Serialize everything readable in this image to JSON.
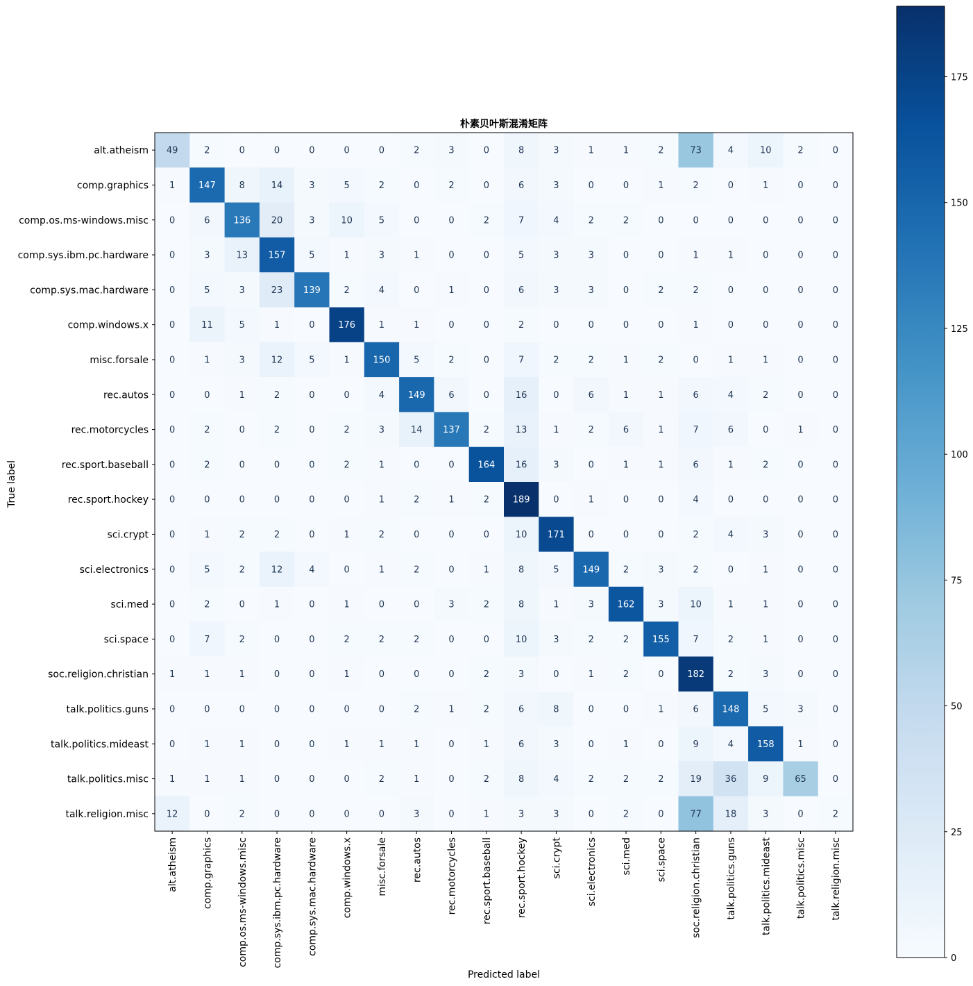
{
  "chart_data": {
    "type": "heatmap",
    "title": "朴素贝叶斯混淆矩阵",
    "xlabel": "Predicted label",
    "ylabel": "True label",
    "labels": [
      "alt.atheism",
      "comp.graphics",
      "comp.os.ms-windows.misc",
      "comp.sys.ibm.pc.hardware",
      "comp.sys.mac.hardware",
      "comp.windows.x",
      "misc.forsale",
      "rec.autos",
      "rec.motorcycles",
      "rec.sport.baseball",
      "rec.sport.hockey",
      "sci.crypt",
      "sci.electronics",
      "sci.med",
      "sci.space",
      "soc.religion.christian",
      "talk.politics.guns",
      "talk.politics.mideast",
      "talk.politics.misc",
      "talk.religion.misc"
    ],
    "matrix": [
      [
        49,
        2,
        0,
        0,
        0,
        0,
        0,
        2,
        3,
        0,
        8,
        3,
        1,
        1,
        2,
        73,
        4,
        10,
        2,
        0
      ],
      [
        1,
        147,
        8,
        14,
        3,
        5,
        2,
        0,
        2,
        0,
        6,
        3,
        0,
        0,
        1,
        2,
        0,
        1,
        0,
        0
      ],
      [
        0,
        6,
        136,
        20,
        3,
        10,
        5,
        0,
        0,
        2,
        7,
        4,
        2,
        2,
        0,
        0,
        0,
        0,
        0,
        0
      ],
      [
        0,
        3,
        13,
        157,
        5,
        1,
        3,
        1,
        0,
        0,
        5,
        3,
        3,
        0,
        0,
        1,
        1,
        0,
        0,
        0
      ],
      [
        0,
        5,
        3,
        23,
        139,
        2,
        4,
        0,
        1,
        0,
        6,
        3,
        3,
        0,
        2,
        2,
        0,
        0,
        0,
        0
      ],
      [
        0,
        11,
        5,
        1,
        0,
        176,
        1,
        1,
        0,
        0,
        2,
        0,
        0,
        0,
        0,
        1,
        0,
        0,
        0,
        0
      ],
      [
        0,
        1,
        3,
        12,
        5,
        1,
        150,
        5,
        2,
        0,
        7,
        2,
        2,
        1,
        2,
        0,
        1,
        1,
        0,
        0
      ],
      [
        0,
        0,
        1,
        2,
        0,
        0,
        4,
        149,
        6,
        0,
        16,
        0,
        6,
        1,
        1,
        6,
        4,
        2,
        0,
        0
      ],
      [
        0,
        2,
        0,
        2,
        0,
        2,
        3,
        14,
        137,
        2,
        13,
        1,
        2,
        6,
        1,
        7,
        6,
        0,
        1,
        0
      ],
      [
        0,
        2,
        0,
        0,
        0,
        2,
        1,
        0,
        0,
        164,
        16,
        3,
        0,
        1,
        1,
        6,
        1,
        2,
        0,
        0
      ],
      [
        0,
        0,
        0,
        0,
        0,
        0,
        1,
        2,
        1,
        2,
        189,
        0,
        1,
        0,
        0,
        4,
        0,
        0,
        0,
        0
      ],
      [
        0,
        1,
        2,
        2,
        0,
        1,
        2,
        0,
        0,
        0,
        10,
        171,
        0,
        0,
        0,
        2,
        4,
        3,
        0,
        0
      ],
      [
        0,
        5,
        2,
        12,
        4,
        0,
        1,
        2,
        0,
        1,
        8,
        5,
        149,
        2,
        3,
        2,
        0,
        1,
        0,
        0
      ],
      [
        0,
        2,
        0,
        1,
        0,
        1,
        0,
        0,
        3,
        2,
        8,
        1,
        3,
        162,
        3,
        10,
        1,
        1,
        0,
        0
      ],
      [
        0,
        7,
        2,
        0,
        0,
        2,
        2,
        2,
        0,
        0,
        10,
        3,
        2,
        2,
        155,
        7,
        2,
        1,
        0,
        0
      ],
      [
        1,
        1,
        1,
        0,
        0,
        1,
        0,
        0,
        0,
        2,
        3,
        0,
        1,
        2,
        0,
        182,
        2,
        3,
        0,
        0
      ],
      [
        0,
        0,
        0,
        0,
        0,
        0,
        0,
        2,
        1,
        2,
        6,
        8,
        0,
        0,
        1,
        6,
        148,
        5,
        3,
        0
      ],
      [
        0,
        1,
        1,
        0,
        0,
        1,
        1,
        1,
        0,
        1,
        6,
        3,
        0,
        1,
        0,
        9,
        4,
        158,
        1,
        0
      ],
      [
        1,
        1,
        1,
        0,
        0,
        0,
        2,
        1,
        0,
        2,
        8,
        4,
        2,
        2,
        2,
        19,
        36,
        9,
        65,
        0
      ],
      [
        12,
        0,
        2,
        0,
        0,
        0,
        0,
        3,
        0,
        1,
        3,
        3,
        0,
        2,
        0,
        77,
        18,
        3,
        0,
        2
      ]
    ],
    "colormap": "Blues",
    "vmin": 0,
    "vmax": 189,
    "colorbar_ticks": [
      0,
      25,
      50,
      75,
      100,
      125,
      150,
      175
    ],
    "colorbar_tick_labels": [
      "0",
      "25",
      "50",
      "75",
      "100",
      "125",
      "150",
      "175"
    ],
    "grid": false
  }
}
